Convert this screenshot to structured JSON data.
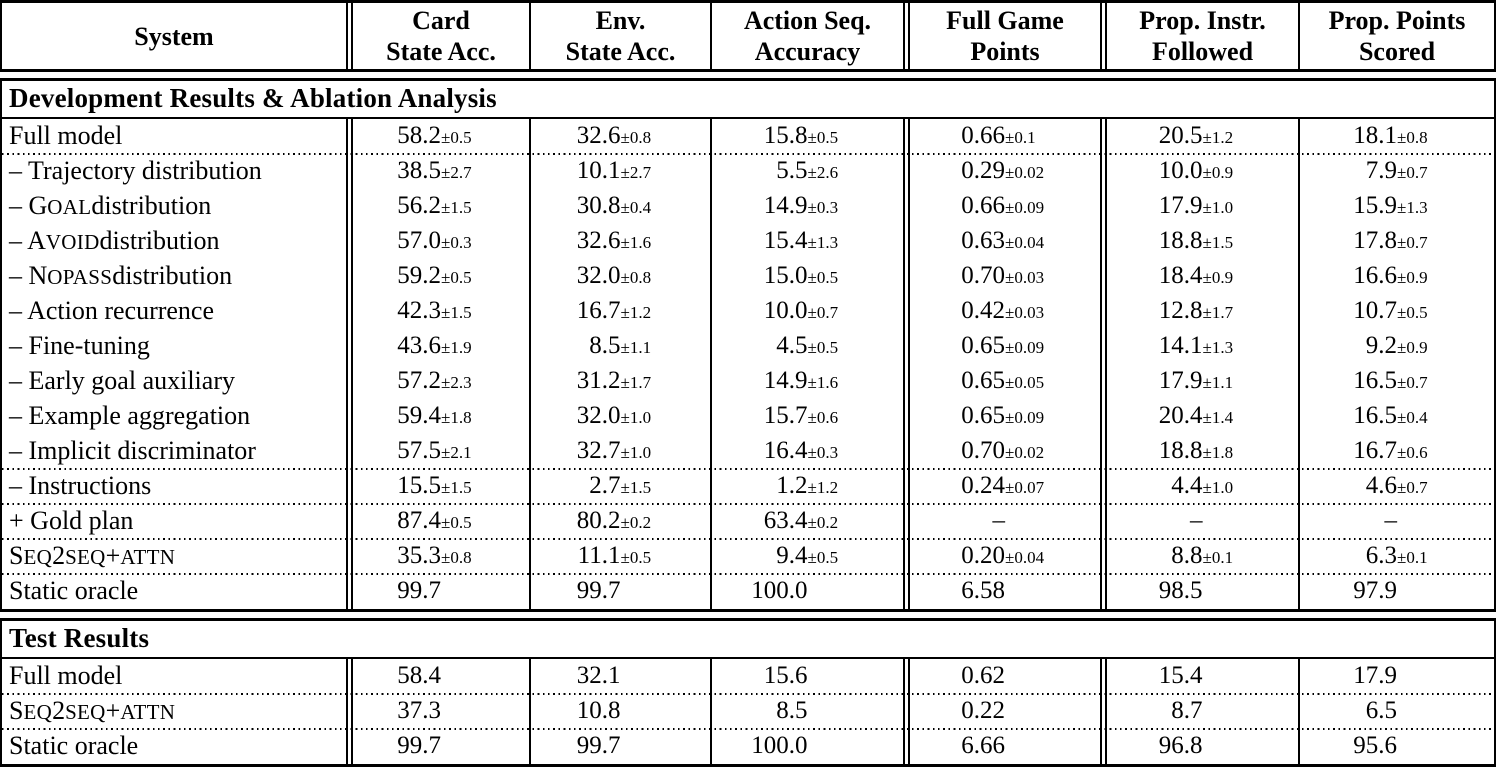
{
  "table": {
    "columns": [
      {
        "lines": [
          "System"
        ]
      },
      {
        "lines": [
          "Card",
          "State Acc."
        ]
      },
      {
        "lines": [
          "Env.",
          "State Acc."
        ]
      },
      {
        "lines": [
          "Action Seq.",
          "Accuracy"
        ]
      },
      {
        "lines": [
          "Full Game",
          "Points"
        ]
      },
      {
        "lines": [
          "Prop. Instr.",
          "Followed"
        ]
      },
      {
        "lines": [
          "Prop. Points",
          "Scored"
        ]
      }
    ],
    "sections": [
      {
        "title": "Development Results & Ablation Analysis",
        "rows": [
          {
            "dotted": false,
            "label": [
              {
                "t": "Full model"
              }
            ],
            "cells": [
              {
                "v": "58.2",
                "pm": "±0.5"
              },
              {
                "v": "32.6",
                "pm": "±0.8"
              },
              {
                "v": "15.8",
                "pm": "±0.5"
              },
              {
                "v": "0.66",
                "pm": "±0.1"
              },
              {
                "v": "20.5",
                "pm": "±1.2"
              },
              {
                "v": "18.1",
                "pm": "±0.8"
              }
            ]
          },
          {
            "dotted": true,
            "label": [
              {
                "t": "– Trajectory distribution"
              }
            ],
            "cells": [
              {
                "v": "38.5",
                "pm": "±2.7"
              },
              {
                "v": "10.1",
                "pm": "±2.7"
              },
              {
                "v": "5.5",
                "pm": "±2.6"
              },
              {
                "v": "0.29",
                "pm": "±0.02"
              },
              {
                "v": "10.0",
                "pm": "±0.9"
              },
              {
                "v": "7.9",
                "pm": "±0.7"
              }
            ]
          },
          {
            "dotted": false,
            "label": [
              {
                "t": "– G"
              },
              {
                "t": "OAL",
                "sc": true
              },
              {
                "t": " distribution"
              }
            ],
            "cells": [
              {
                "v": "56.2",
                "pm": "±1.5"
              },
              {
                "v": "30.8",
                "pm": "±0.4"
              },
              {
                "v": "14.9",
                "pm": "±0.3"
              },
              {
                "v": "0.66",
                "pm": "±0.09"
              },
              {
                "v": "17.9",
                "pm": "±1.0"
              },
              {
                "v": "15.9",
                "pm": "±1.3"
              }
            ]
          },
          {
            "dotted": false,
            "label": [
              {
                "t": "– A"
              },
              {
                "t": "VOID",
                "sc": true
              },
              {
                "t": " distribution"
              }
            ],
            "cells": [
              {
                "v": "57.0",
                "pm": "±0.3"
              },
              {
                "v": "32.6",
                "pm": "±1.6"
              },
              {
                "v": "15.4",
                "pm": "±1.3"
              },
              {
                "v": "0.63",
                "pm": "±0.04"
              },
              {
                "v": "18.8",
                "pm": "±1.5"
              },
              {
                "v": "17.8",
                "pm": "±0.7"
              }
            ]
          },
          {
            "dotted": false,
            "label": [
              {
                "t": "– N"
              },
              {
                "t": "OPASS",
                "sc": true
              },
              {
                "t": " distribution"
              }
            ],
            "cells": [
              {
                "v": "59.2",
                "pm": "±0.5"
              },
              {
                "v": "32.0",
                "pm": "±0.8"
              },
              {
                "v": "15.0",
                "pm": "±0.5"
              },
              {
                "v": "0.70",
                "pm": "±0.03"
              },
              {
                "v": "18.4",
                "pm": "±0.9"
              },
              {
                "v": "16.6",
                "pm": "±0.9"
              }
            ]
          },
          {
            "dotted": false,
            "label": [
              {
                "t": "– Action recurrence"
              }
            ],
            "cells": [
              {
                "v": "42.3",
                "pm": "±1.5"
              },
              {
                "v": "16.7",
                "pm": "±1.2"
              },
              {
                "v": "10.0",
                "pm": "±0.7"
              },
              {
                "v": "0.42",
                "pm": "±0.03"
              },
              {
                "v": "12.8",
                "pm": "±1.7"
              },
              {
                "v": "10.7",
                "pm": "±0.5"
              }
            ]
          },
          {
            "dotted": false,
            "label": [
              {
                "t": "– Fine-tuning"
              }
            ],
            "cells": [
              {
                "v": "43.6",
                "pm": "±1.9"
              },
              {
                "v": "8.5",
                "pm": "±1.1"
              },
              {
                "v": "4.5",
                "pm": "±0.5"
              },
              {
                "v": "0.65",
                "pm": "±0.09"
              },
              {
                "v": "14.1",
                "pm": "±1.3"
              },
              {
                "v": "9.2",
                "pm": "±0.9"
              }
            ]
          },
          {
            "dotted": false,
            "label": [
              {
                "t": "– Early goal auxiliary"
              }
            ],
            "cells": [
              {
                "v": "57.2",
                "pm": "±2.3"
              },
              {
                "v": "31.2",
                "pm": "±1.7"
              },
              {
                "v": "14.9",
                "pm": "±1.6"
              },
              {
                "v": "0.65",
                "pm": "±0.05"
              },
              {
                "v": "17.9",
                "pm": "±1.1"
              },
              {
                "v": "16.5",
                "pm": "±0.7"
              }
            ]
          },
          {
            "dotted": false,
            "label": [
              {
                "t": "– Example aggregation"
              }
            ],
            "cells": [
              {
                "v": "59.4",
                "pm": "±1.8"
              },
              {
                "v": "32.0",
                "pm": "±1.0"
              },
              {
                "v": "15.7",
                "pm": "±0.6"
              },
              {
                "v": "0.65",
                "pm": "±0.09"
              },
              {
                "v": "20.4",
                "pm": "±1.4"
              },
              {
                "v": "16.5",
                "pm": "±0.4"
              }
            ]
          },
          {
            "dotted": false,
            "label": [
              {
                "t": "– Implicit discriminator"
              }
            ],
            "cells": [
              {
                "v": "57.5",
                "pm": "±2.1"
              },
              {
                "v": "32.7",
                "pm": "±1.0"
              },
              {
                "v": "16.4",
                "pm": "±0.3"
              },
              {
                "v": "0.70",
                "pm": "±0.02"
              },
              {
                "v": "18.8",
                "pm": "±1.8"
              },
              {
                "v": "16.7",
                "pm": "±0.6"
              }
            ]
          },
          {
            "dotted": true,
            "label": [
              {
                "t": "– Instructions"
              }
            ],
            "cells": [
              {
                "v": "15.5",
                "pm": "±1.5"
              },
              {
                "v": "2.7",
                "pm": "±1.5"
              },
              {
                "v": "1.2",
                "pm": "±1.2"
              },
              {
                "v": "0.24",
                "pm": "±0.07"
              },
              {
                "v": "4.4",
                "pm": "±1.0"
              },
              {
                "v": "4.6",
                "pm": "±0.7"
              }
            ]
          },
          {
            "dotted": true,
            "label": [
              {
                "t": "+ Gold plan"
              }
            ],
            "cells": [
              {
                "v": "87.4",
                "pm": "±0.5"
              },
              {
                "v": "80.2",
                "pm": "±0.2"
              },
              {
                "v": "63.4",
                "pm": "±0.2"
              },
              {
                "v": "–",
                "pm": ""
              },
              {
                "v": "–",
                "pm": ""
              },
              {
                "v": "–",
                "pm": ""
              }
            ]
          },
          {
            "dotted": true,
            "label": [
              {
                "t": "S"
              },
              {
                "t": "EQ",
                "sc": true
              },
              {
                "t": "2"
              },
              {
                "t": "SEQ",
                "sc": true
              },
              {
                "t": "+"
              },
              {
                "t": "ATTN",
                "sc": true
              }
            ],
            "cells": [
              {
                "v": "35.3",
                "pm": "±0.8"
              },
              {
                "v": "11.1",
                "pm": "±0.5"
              },
              {
                "v": "9.4",
                "pm": "±0.5"
              },
              {
                "v": "0.20",
                "pm": "±0.04"
              },
              {
                "v": "8.8",
                "pm": "±0.1"
              },
              {
                "v": "6.3",
                "pm": "±0.1"
              }
            ]
          },
          {
            "dotted": true,
            "label": [
              {
                "t": "Static oracle"
              }
            ],
            "cells": [
              {
                "v": "99.7",
                "pm": ""
              },
              {
                "v": "99.7",
                "pm": ""
              },
              {
                "v": "100.0",
                "pm": ""
              },
              {
                "v": "6.58",
                "pm": ""
              },
              {
                "v": "98.5",
                "pm": ""
              },
              {
                "v": "97.9",
                "pm": ""
              }
            ]
          }
        ]
      },
      {
        "title": "Test Results",
        "rows": [
          {
            "dotted": false,
            "label": [
              {
                "t": "Full model"
              }
            ],
            "cells": [
              {
                "v": "58.4",
                "pm": ""
              },
              {
                "v": "32.1",
                "pm": ""
              },
              {
                "v": "15.6",
                "pm": ""
              },
              {
                "v": "0.62",
                "pm": ""
              },
              {
                "v": "15.4",
                "pm": ""
              },
              {
                "v": "17.9",
                "pm": ""
              }
            ]
          },
          {
            "dotted": true,
            "label": [
              {
                "t": "S"
              },
              {
                "t": "EQ",
                "sc": true
              },
              {
                "t": "2"
              },
              {
                "t": "SEQ",
                "sc": true
              },
              {
                "t": "+"
              },
              {
                "t": "ATTN",
                "sc": true
              }
            ],
            "cells": [
              {
                "v": "37.3",
                "pm": ""
              },
              {
                "v": "10.8",
                "pm": ""
              },
              {
                "v": "8.5",
                "pm": ""
              },
              {
                "v": "0.22",
                "pm": ""
              },
              {
                "v": "8.7",
                "pm": ""
              },
              {
                "v": "6.5",
                "pm": ""
              }
            ]
          },
          {
            "dotted": true,
            "label": [
              {
                "t": "Static oracle"
              }
            ],
            "cells": [
              {
                "v": "99.7",
                "pm": ""
              },
              {
                "v": "99.7",
                "pm": ""
              },
              {
                "v": "100.0",
                "pm": ""
              },
              {
                "v": "6.66",
                "pm": ""
              },
              {
                "v": "96.8",
                "pm": ""
              },
              {
                "v": "95.6",
                "pm": ""
              }
            ]
          }
        ]
      }
    ]
  }
}
